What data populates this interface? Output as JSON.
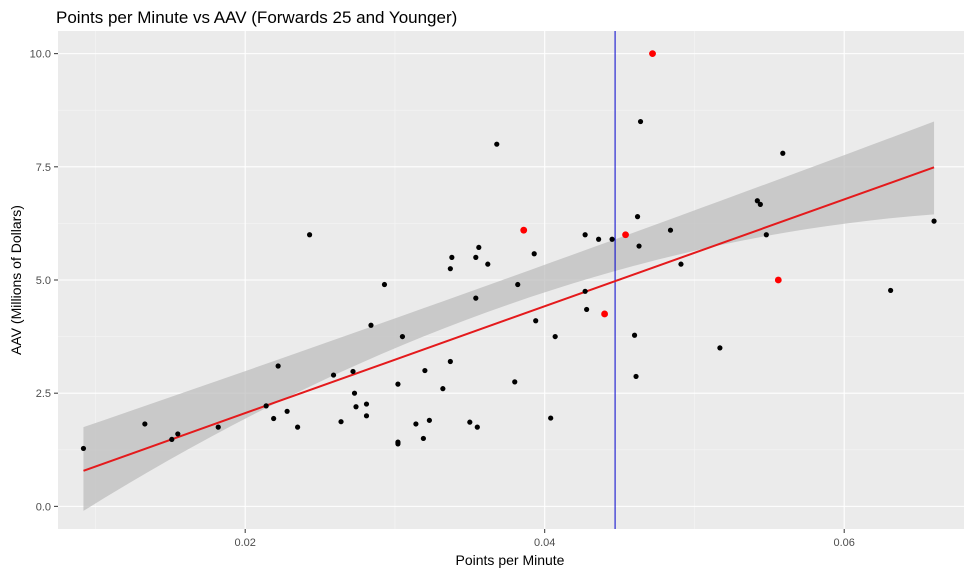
{
  "chart_data": {
    "type": "scatter",
    "title": "Points per Minute vs AAV (Forwards 25 and Younger)",
    "xlabel": "Points per Minute",
    "ylabel": "AAV (Millions of Dollars)",
    "xlim": [
      0.0075,
      0.068
    ],
    "ylim": [
      -0.5,
      10.5
    ],
    "x_ticks": [
      0.02,
      0.04,
      0.06
    ],
    "x_tick_labels": [
      "0.02",
      "0.04",
      "0.06"
    ],
    "y_ticks": [
      0,
      2.5,
      5,
      7.5,
      10
    ],
    "y_tick_labels": [
      "0.0",
      "2.5",
      "5.0",
      "7.5",
      "10.0"
    ],
    "grid": true,
    "background": "#EBEBEB",
    "grid_major_color": "#FFFFFF",
    "vline": {
      "x": 0.0447,
      "color": "#0000CD"
    },
    "regression": {
      "x_range": [
        0.0092,
        0.066
      ],
      "intercept": -0.3,
      "slope": 118,
      "color": "#E41A1C",
      "ci_color": "#BEBEBE",
      "ci_left": [
        -0.1,
        1.75
      ],
      "ci_mid": [
        4.46,
        5.05
      ],
      "ci_right": [
        6.45,
        8.5
      ]
    },
    "series": [
      {
        "color": "#000000",
        "points": [
          [
            0.0092,
            1.28
          ],
          [
            0.0133,
            1.82
          ],
          [
            0.0151,
            1.48
          ],
          [
            0.0155,
            1.6
          ],
          [
            0.0182,
            1.75
          ],
          [
            0.0214,
            2.22
          ],
          [
            0.0219,
            1.94
          ],
          [
            0.0222,
            3.1
          ],
          [
            0.0228,
            2.1
          ],
          [
            0.0235,
            1.75
          ],
          [
            0.0243,
            6.0
          ],
          [
            0.0259,
            2.9
          ],
          [
            0.0264,
            1.87
          ],
          [
            0.0272,
            2.98
          ],
          [
            0.0273,
            2.5
          ],
          [
            0.0274,
            2.2
          ],
          [
            0.0281,
            2.26
          ],
          [
            0.0281,
            2.0
          ],
          [
            0.0284,
            4.0
          ],
          [
            0.0293,
            4.9
          ],
          [
            0.0302,
            2.7
          ],
          [
            0.0302,
            1.42
          ],
          [
            0.0302,
            1.38
          ],
          [
            0.0305,
            3.75
          ],
          [
            0.0314,
            1.82
          ],
          [
            0.0319,
            1.5
          ],
          [
            0.032,
            3.0
          ],
          [
            0.0323,
            1.9
          ],
          [
            0.0332,
            2.6
          ],
          [
            0.0337,
            5.25
          ],
          [
            0.0337,
            3.2
          ],
          [
            0.0338,
            5.5
          ],
          [
            0.035,
            1.86
          ],
          [
            0.0354,
            5.5
          ],
          [
            0.0354,
            4.6
          ],
          [
            0.0355,
            1.75
          ],
          [
            0.0356,
            5.72
          ],
          [
            0.0362,
            5.35
          ],
          [
            0.0368,
            8.0
          ],
          [
            0.038,
            2.75
          ],
          [
            0.0382,
            4.9
          ],
          [
            0.0393,
            5.58
          ],
          [
            0.0394,
            4.1
          ],
          [
            0.0404,
            1.95
          ],
          [
            0.0407,
            3.75
          ],
          [
            0.0427,
            6.0
          ],
          [
            0.0427,
            4.75
          ],
          [
            0.0428,
            4.35
          ],
          [
            0.0436,
            5.9
          ],
          [
            0.0445,
            5.9
          ],
          [
            0.046,
            3.78
          ],
          [
            0.0461,
            2.87
          ],
          [
            0.0462,
            6.4
          ],
          [
            0.0463,
            5.75
          ],
          [
            0.0464,
            8.5
          ],
          [
            0.0484,
            6.1
          ],
          [
            0.0491,
            5.35
          ],
          [
            0.0517,
            3.5
          ],
          [
            0.0542,
            6.75
          ],
          [
            0.0544,
            6.67
          ],
          [
            0.0548,
            6.0
          ],
          [
            0.0559,
            7.8
          ],
          [
            0.0631,
            4.77
          ],
          [
            0.066,
            6.3
          ]
        ]
      },
      {
        "color": "#FF0000",
        "points": [
          [
            0.0386,
            6.1
          ],
          [
            0.044,
            4.25
          ],
          [
            0.0454,
            6.0
          ],
          [
            0.0472,
            10.0
          ],
          [
            0.0556,
            5.0
          ]
        ]
      }
    ]
  }
}
